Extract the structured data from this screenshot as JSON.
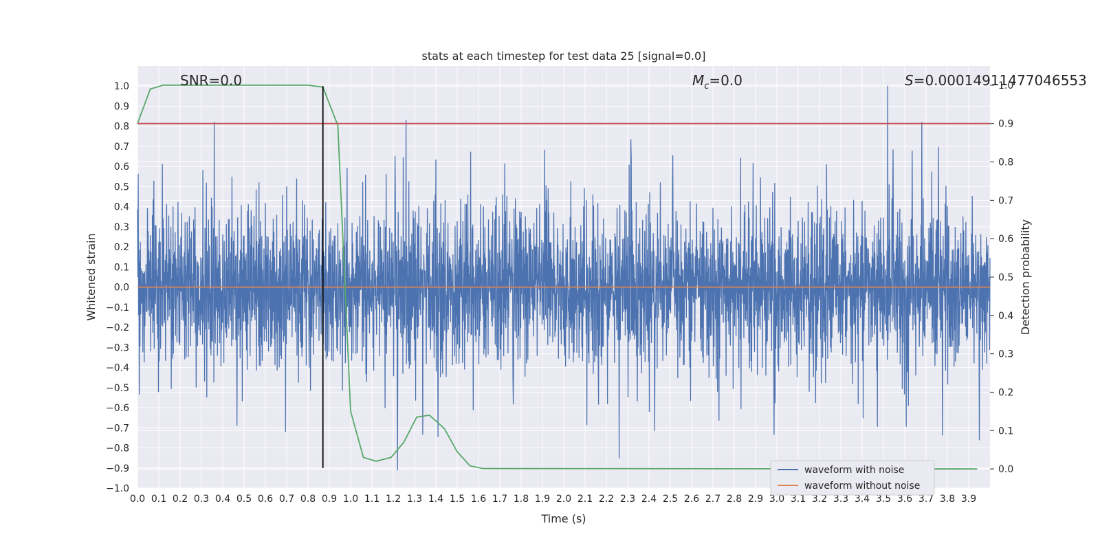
{
  "chart_data": {
    "type": "line",
    "title": "stats at each timestep for test data 25 [signal=0.0]",
    "xlabel": "Time (s)",
    "ylabel_left": "Whitened strain",
    "ylabel_right": "Detection probability",
    "xlim": [
      0.0,
      4.0
    ],
    "ylim_left": [
      -1.0,
      1.1
    ],
    "ylim_right": [
      -0.05,
      1.05
    ],
    "x_ticks": [
      "0.0",
      "0.1",
      "0.2",
      "0.3",
      "0.4",
      "0.5",
      "0.6",
      "0.7",
      "0.8",
      "0.9",
      "1.0",
      "1.1",
      "1.2",
      "1.3",
      "1.4",
      "1.5",
      "1.6",
      "1.7",
      "1.8",
      "1.9",
      "2.0",
      "2.1",
      "2.2",
      "2.3",
      "2.4",
      "2.5",
      "2.6",
      "2.7",
      "2.8",
      "2.9",
      "3.0",
      "3.1",
      "3.2",
      "3.3",
      "3.4",
      "3.5",
      "3.6",
      "3.7",
      "3.8",
      "3.9"
    ],
    "y_left_ticks": [
      "−1.0",
      "−0.9",
      "−0.8",
      "−0.7",
      "−0.6",
      "−0.5",
      "−0.4",
      "−0.3",
      "−0.2",
      "−0.1",
      "0.0",
      "0.1",
      "0.2",
      "0.3",
      "0.4",
      "0.5",
      "0.6",
      "0.7",
      "0.8",
      "0.9",
      "1.0"
    ],
    "y_right_ticks": [
      "0.0",
      "0.1",
      "0.2",
      "0.3",
      "0.4",
      "0.5",
      "0.6",
      "0.7",
      "0.8",
      "0.9",
      "1.0"
    ],
    "grid": true,
    "legend_position": "lower-right",
    "annotations": {
      "snr": "SNR=0.0",
      "mc_symbol": "M",
      "mc_sub": "c",
      "mc_value": "=0.0",
      "s_symbol": "S",
      "s_value": "=0.00014911477046553"
    },
    "series": [
      {
        "name": "waveform with noise",
        "axis": "left",
        "color": "#4c72b0",
        "style": "noise",
        "x_range": [
          0.0,
          4.0
        ],
        "envelope_upper_typical": 0.45,
        "envelope_lower_typical": -0.45,
        "notable_peaks": [
          {
            "x": 0.36,
            "y": 0.82
          },
          {
            "x": 1.26,
            "y": 0.83
          },
          {
            "x": 3.52,
            "y": 1.0
          },
          {
            "x": 3.68,
            "y": 0.82
          },
          {
            "x": 1.22,
            "y": -0.91
          },
          {
            "x": 2.26,
            "y": -0.85
          },
          {
            "x": 3.95,
            "y": -0.76
          }
        ]
      },
      {
        "name": "waveform without noise",
        "axis": "left",
        "color": "#dd8452",
        "x": [
          0.0,
          4.0
        ],
        "y": [
          0.0,
          0.0
        ]
      },
      {
        "name": "",
        "axis": "right",
        "color": "#55a868",
        "x": [
          0.0,
          0.06,
          0.12,
          0.8,
          0.87,
          0.94,
          1.0,
          1.06,
          1.12,
          1.19,
          1.25,
          1.31,
          1.37,
          1.44,
          1.5,
          1.56,
          1.62,
          3.94
        ],
        "y": [
          0.9,
          0.99,
          1.0,
          1.0,
          0.995,
          0.895,
          0.15,
          0.03,
          0.02,
          0.03,
          0.07,
          0.135,
          0.14,
          0.105,
          0.045,
          0.008,
          0.001,
          0.0
        ]
      },
      {
        "name": "",
        "axis": "right",
        "color": "#c44e52",
        "x": [
          0.0,
          4.0
        ],
        "y": [
          0.9,
          0.9
        ]
      },
      {
        "name": "",
        "axis": "left",
        "color": "#000000",
        "x": [
          0.87,
          0.87
        ],
        "y": [
          -0.9,
          1.0
        ]
      }
    ]
  }
}
